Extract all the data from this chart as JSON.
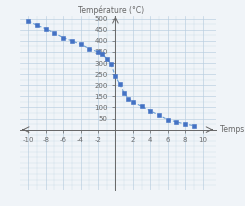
{
  "x_data": [
    -10,
    -9,
    -8,
    -7,
    -6,
    -5,
    -4,
    -3,
    -2,
    -1.5,
    -1,
    -0.5,
    0,
    0.5,
    1,
    1.5,
    2,
    3,
    4,
    5,
    6,
    7,
    8,
    9
  ],
  "y_data": [
    490,
    470,
    455,
    435,
    415,
    400,
    385,
    365,
    350,
    340,
    320,
    295,
    240,
    205,
    165,
    140,
    125,
    105,
    85,
    65,
    45,
    35,
    25,
    18
  ],
  "line_color": "#6b9fd4",
  "marker_color": "#4472c4",
  "marker_style": "s",
  "marker_size": 2.2,
  "line_width": 0.8,
  "title": "Température (°C)",
  "xlabel": "Temps (s)",
  "xlim": [
    -11,
    11.5
  ],
  "ylim": [
    -270,
    510
  ],
  "xticks": [
    -10,
    -8,
    -6,
    -4,
    -2,
    2,
    4,
    6,
    8,
    10
  ],
  "yticks": [
    0,
    50,
    100,
    150,
    200,
    250,
    300,
    350,
    400,
    450,
    500
  ],
  "grid_color": "#b8cde0",
  "grid_alpha": 0.8,
  "axis_color": "#666666",
  "background_color": "#f0f4f8",
  "title_fontsize": 5.5,
  "label_fontsize": 5.5,
  "tick_fontsize": 5.0
}
